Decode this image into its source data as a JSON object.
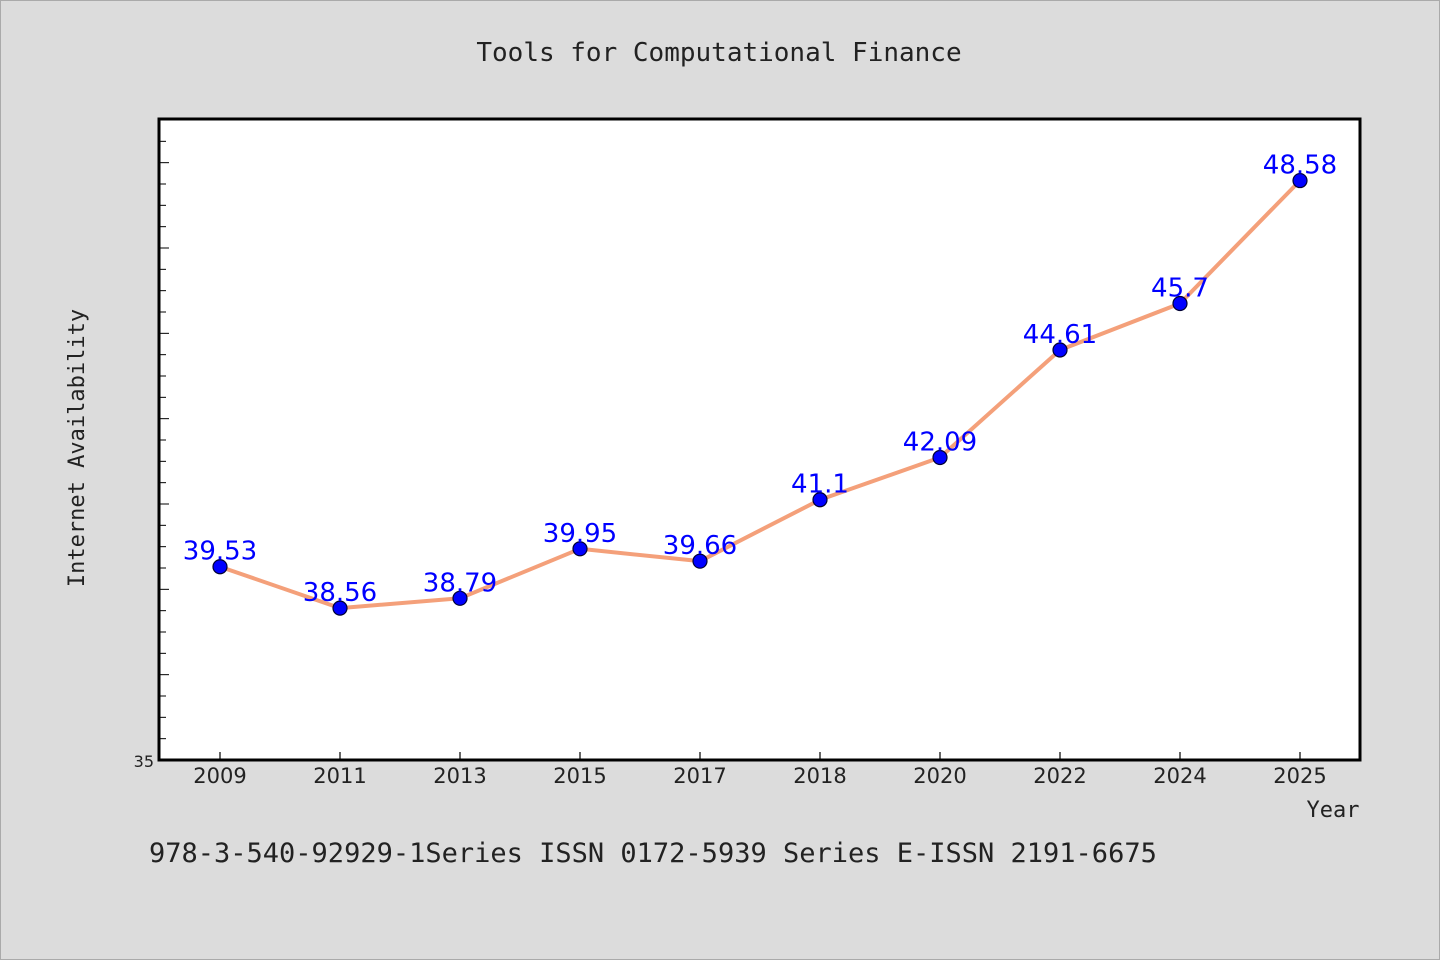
{
  "chart_data": {
    "type": "line",
    "title": "Tools for Computational Finance",
    "xlabel": "Year",
    "ylabel": "Internet Availability",
    "categories": [
      "2009",
      "2011",
      "2013",
      "2015",
      "2017",
      "2018",
      "2020",
      "2022",
      "2024",
      "2025"
    ],
    "series": [
      {
        "values": [
          39.53,
          38.56,
          38.79,
          39.95,
          39.66,
          41.1,
          42.09,
          44.61,
          45.7,
          48.58
        ],
        "labels": [
          "39.53",
          "38.56",
          "38.79",
          "39.95",
          "39.66",
          "41.1",
          "42.09",
          "44.61",
          "45.7",
          "48.58"
        ]
      }
    ],
    "ylim": [
      35,
      50
    ],
    "y_tick_labels": [
      {
        "value": 35,
        "label": "35"
      }
    ],
    "grid": false,
    "colors": {
      "background": "#dcdcdc",
      "plot_background": "#ffffff",
      "line": "#f4a07a",
      "marker": "#0000ff",
      "data_label": "#0000ff",
      "text": "#222222"
    }
  },
  "footer_text": "978-3-540-92929-1Series ISSN 0172-5939 Series E-ISSN 2191-6675"
}
